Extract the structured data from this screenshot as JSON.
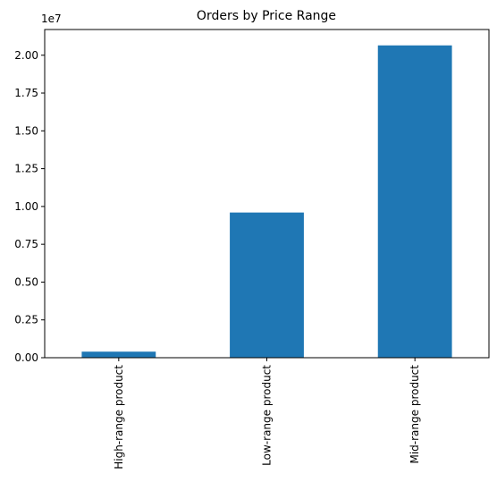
{
  "chart_data": {
    "type": "bar",
    "title": "Orders by Price Range",
    "xlabel": "",
    "ylabel": "",
    "categories": [
      "High-range product",
      "Low-range product",
      "Mid-range product"
    ],
    "values": [
      400000,
      9600000,
      20650000
    ],
    "ylim": [
      0,
      21700000
    ],
    "yticks": [
      0,
      2500000,
      5000000,
      7500000,
      10000000,
      12500000,
      15000000,
      17500000,
      20000000
    ],
    "ytick_labels": [
      "0.00",
      "0.25",
      "0.50",
      "0.75",
      "1.00",
      "1.25",
      "1.50",
      "1.75",
      "2.00"
    ],
    "y_offset_label": "1e7",
    "bar_color": "#1f77b4",
    "grid": false,
    "legend": "none"
  }
}
